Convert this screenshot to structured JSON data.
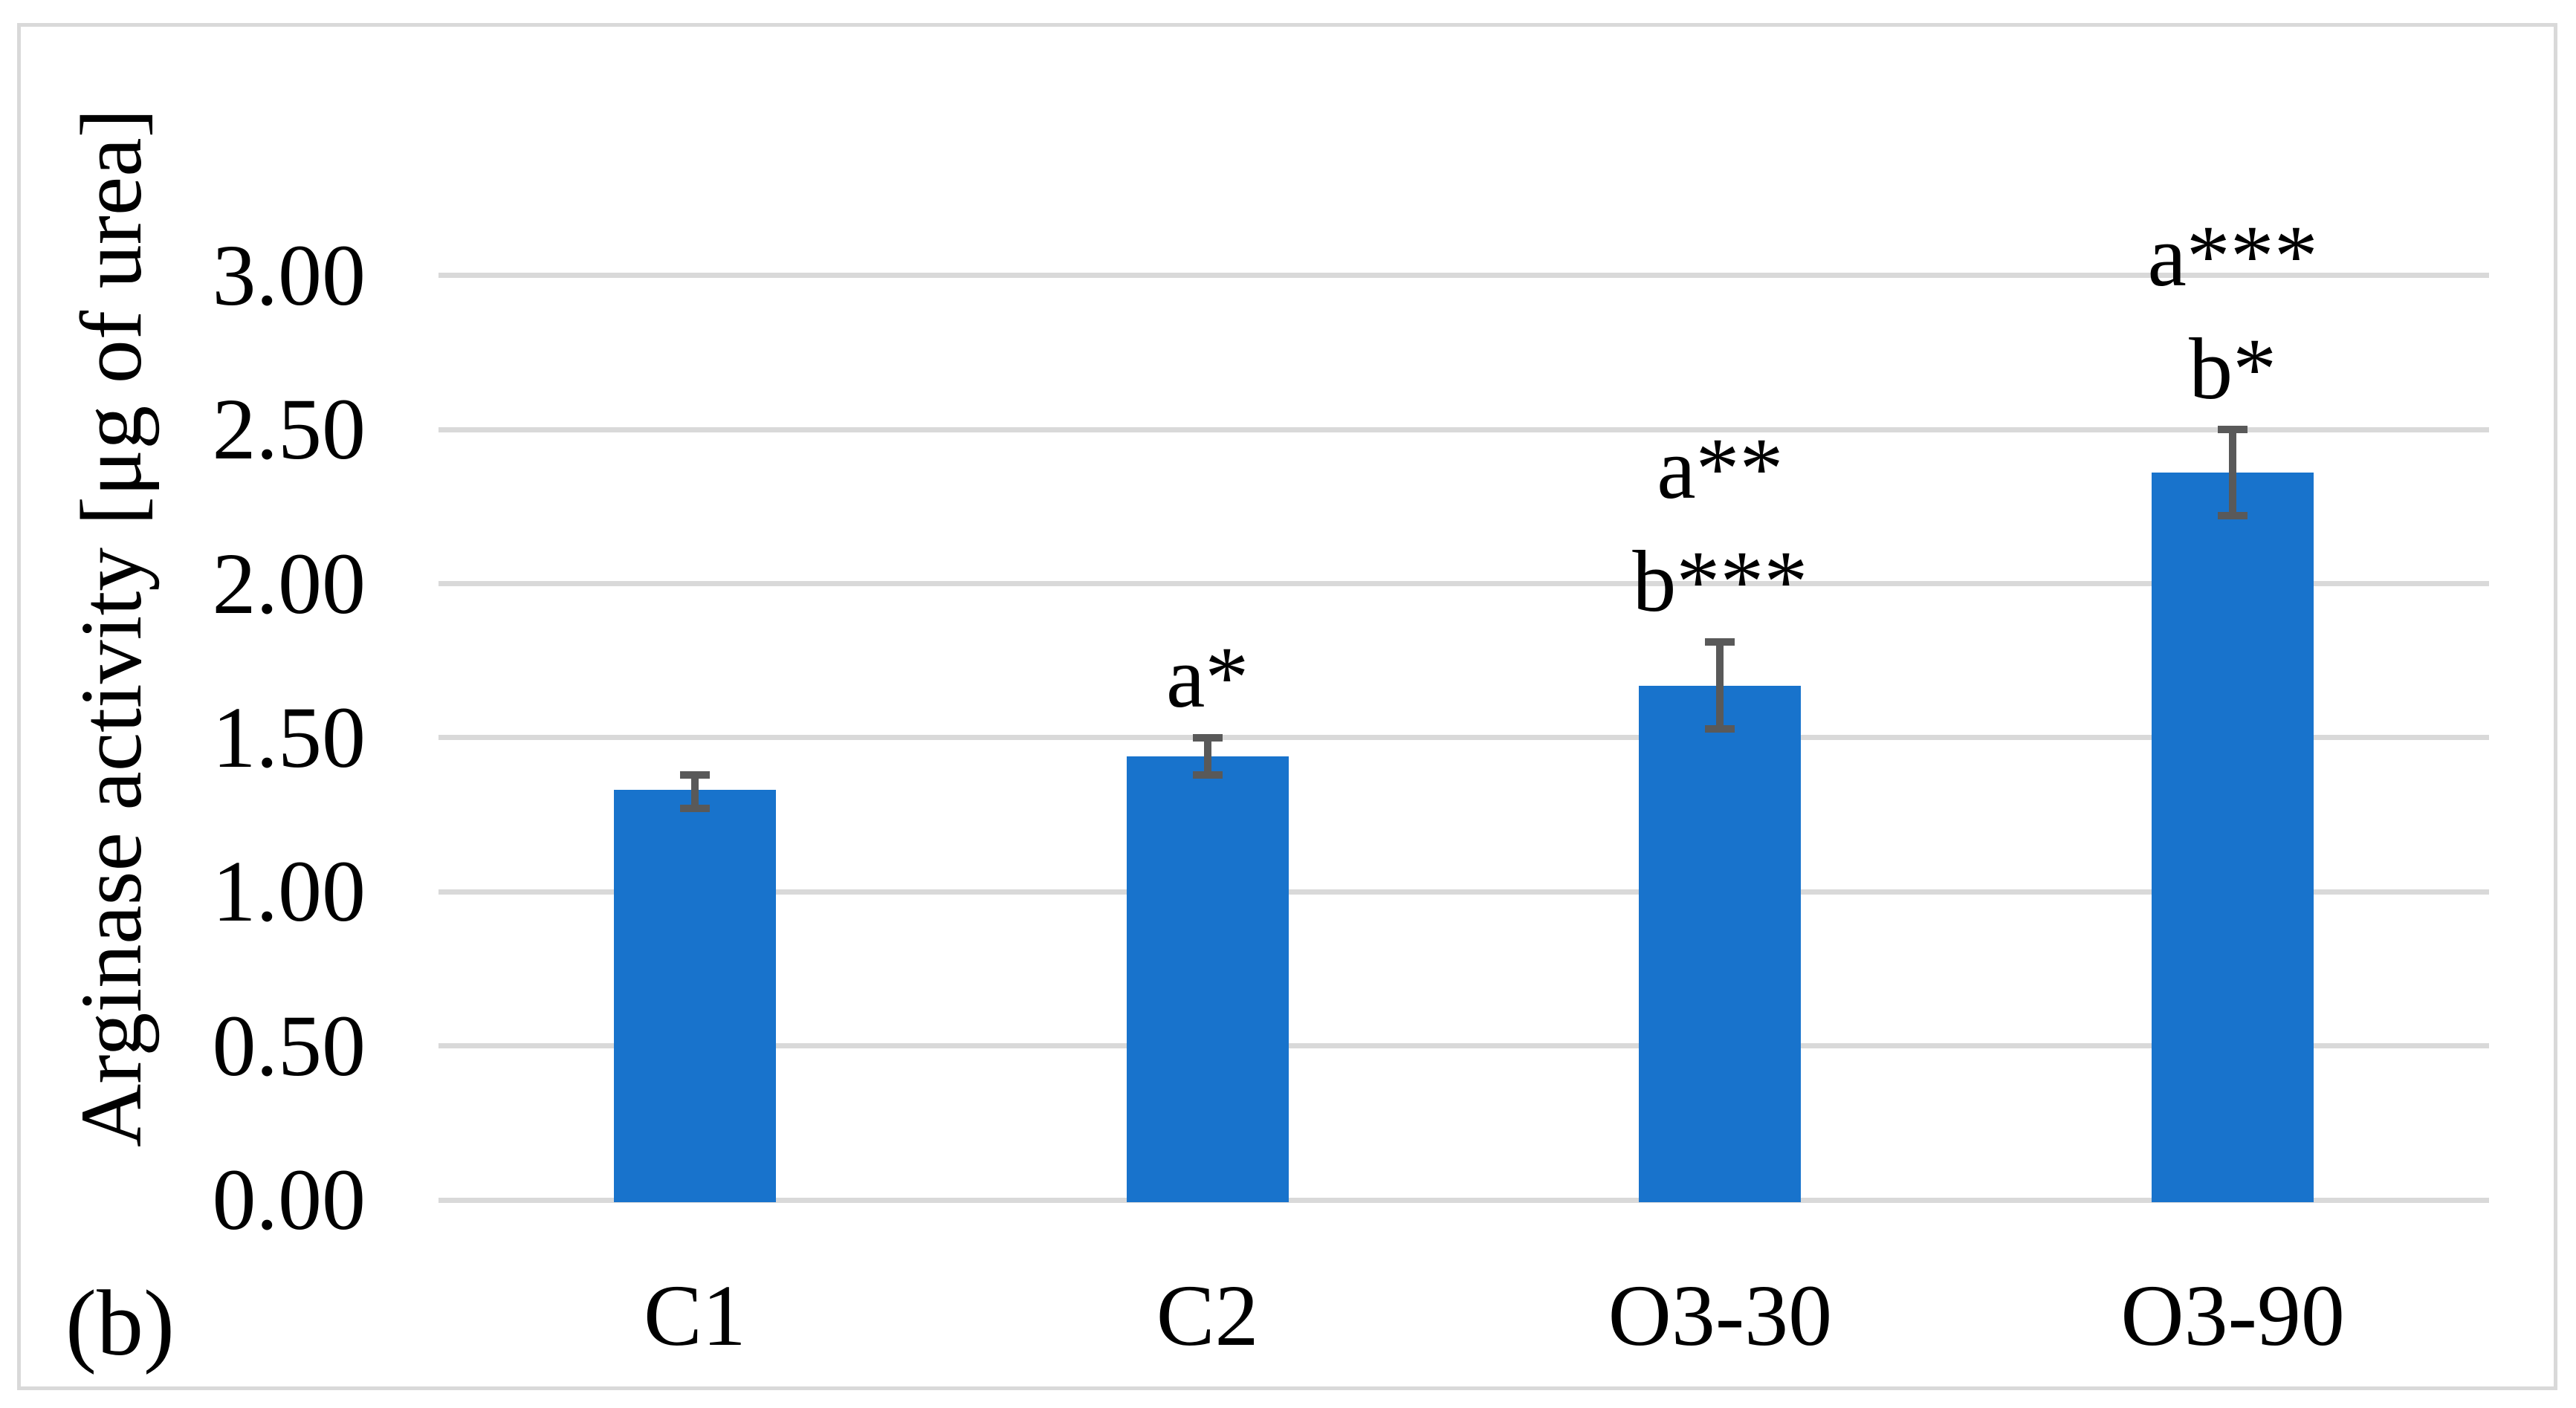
{
  "figure": {
    "panel_label": "(b)",
    "background": "#FFFFFF",
    "border_color": "#D9D9D9"
  },
  "chart_data": {
    "type": "bar",
    "title": "",
    "xlabel": "",
    "ylabel": "Arginase activity [μg of urea]",
    "categories": [
      "C1",
      "C2",
      "O3-30",
      "O3-90"
    ],
    "values": [
      1.33,
      1.44,
      1.67,
      2.36
    ],
    "error_plus": [
      0.05,
      0.06,
      0.14,
      0.14
    ],
    "error_minus": [
      0.06,
      0.06,
      0.14,
      0.14
    ],
    "annotations": [
      [],
      [
        "a*"
      ],
      [
        "a**",
        "b***"
      ],
      [
        "a***",
        "b*"
      ]
    ],
    "ylim": [
      0,
      3.0
    ],
    "ytick_step": 0.5,
    "ytick_labels": [
      "0.00",
      "0.50",
      "1.00",
      "1.50",
      "2.00",
      "2.50",
      "3.00"
    ],
    "grid": true,
    "legend": false,
    "bar_color": "#1873CC",
    "error_color": "#595959",
    "gridline_color": "#D9D9D9",
    "text_color": "#000000"
  }
}
